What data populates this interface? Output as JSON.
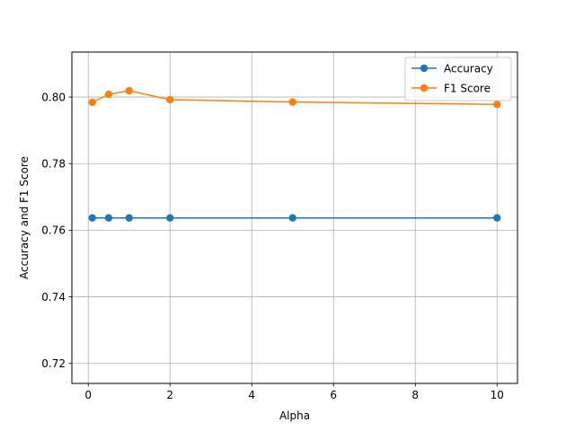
{
  "chart_data": {
    "type": "line",
    "xlabel": "Alpha",
    "ylabel": "Accuracy and F1 Score",
    "xlim": [
      -0.4,
      10.5
    ],
    "ylim": [
      0.714,
      0.8135
    ],
    "xticks": [
      0,
      2,
      4,
      6,
      8,
      10
    ],
    "yticks": [
      0.72,
      0.74,
      0.76,
      0.78,
      0.8
    ],
    "ytick_labels": [
      "0.72",
      "0.74",
      "0.76",
      "0.78",
      "0.80"
    ],
    "grid": true,
    "legend_position": "top-right",
    "series": [
      {
        "name": "Accuracy",
        "color": "#1f77b4",
        "x": [
          0.1,
          0.5,
          1,
          2,
          5,
          10
        ],
        "y": [
          0.7637,
          0.7637,
          0.7637,
          0.7637,
          0.7637,
          0.7637
        ]
      },
      {
        "name": "F1 Score",
        "color": "#ff7f0e",
        "x": [
          0.1,
          0.5,
          1,
          2,
          5,
          10
        ],
        "y": [
          0.7984,
          0.8008,
          0.8019,
          0.7992,
          0.7985,
          0.7978
        ]
      }
    ]
  }
}
